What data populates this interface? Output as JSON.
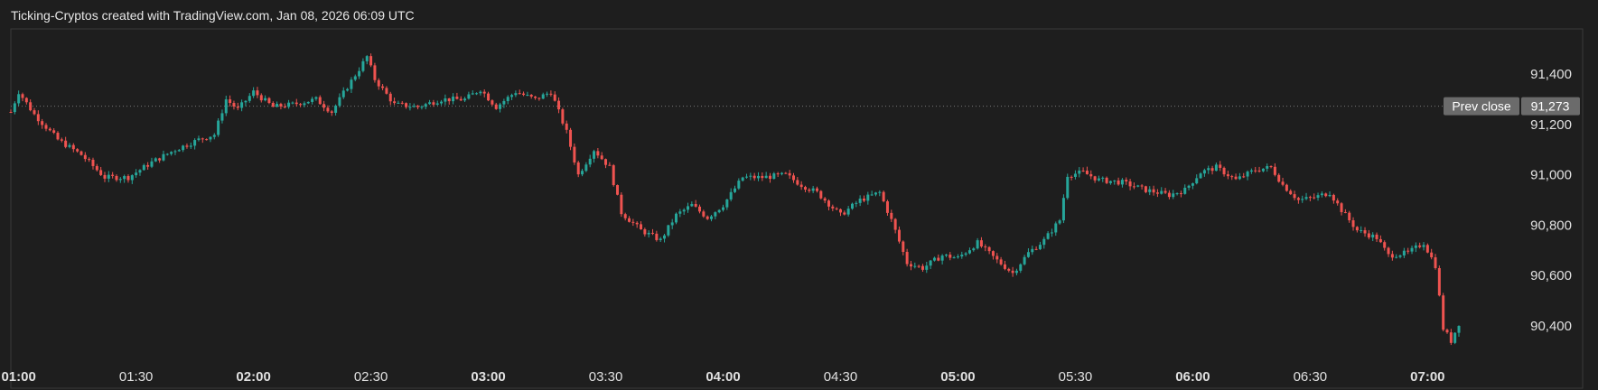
{
  "header": {
    "text": "Ticking-Cryptos created with TradingView.com, Jan 08, 2026 06:09 UTC"
  },
  "colors": {
    "background": "#1e1e1e",
    "up": "#26a69a",
    "down": "#ef5350",
    "grid_border": "#3a3a3a",
    "label_bg": "#6b6b6b"
  },
  "chart_data": {
    "type": "candlestick",
    "title": "",
    "xlabel": "",
    "ylabel": "",
    "ylim": [
      90260,
      91580
    ],
    "x_range": [
      "00:58",
      "07:23"
    ],
    "grid": false,
    "y_ticks": [
      {
        "value": 91400,
        "label": "91,400"
      },
      {
        "value": 91200,
        "label": "91,200"
      },
      {
        "value": 91000,
        "label": "91,000"
      },
      {
        "value": 90800,
        "label": "90,800"
      },
      {
        "value": 90600,
        "label": "90,600"
      },
      {
        "value": 90400,
        "label": "90,400"
      }
    ],
    "x_ticks": [
      {
        "time": "01:00",
        "label": "01:00",
        "major": true
      },
      {
        "time": "01:30",
        "label": "01:30",
        "major": false
      },
      {
        "time": "02:00",
        "label": "02:00",
        "major": true
      },
      {
        "time": "02:30",
        "label": "02:30",
        "major": false
      },
      {
        "time": "03:00",
        "label": "03:00",
        "major": true
      },
      {
        "time": "03:30",
        "label": "03:30",
        "major": false
      },
      {
        "time": "04:00",
        "label": "04:00",
        "major": true
      },
      {
        "time": "04:30",
        "label": "04:30",
        "major": false
      },
      {
        "time": "05:00",
        "label": "05:00",
        "major": true
      },
      {
        "time": "05:30",
        "label": "05:30",
        "major": false
      },
      {
        "time": "06:00",
        "label": "06:00",
        "major": true
      },
      {
        "time": "06:30",
        "label": "06:30",
        "major": false
      },
      {
        "time": "07:00",
        "label": "07:00",
        "major": true
      }
    ],
    "prev_close": {
      "label": "Prev close",
      "value": 91273,
      "value_label": "91,273"
    },
    "path": [
      [
        "00:58",
        91250
      ],
      [
        "01:00",
        91330
      ],
      [
        "01:04",
        91240
      ],
      [
        "01:10",
        91140
      ],
      [
        "01:16",
        91080
      ],
      [
        "01:22",
        90990
      ],
      [
        "01:28",
        90990
      ],
      [
        "01:34",
        91050
      ],
      [
        "01:40",
        91100
      ],
      [
        "01:46",
        91140
      ],
      [
        "01:50",
        91160
      ],
      [
        "01:53",
        91300
      ],
      [
        "01:56",
        91260
      ],
      [
        "02:00",
        91330
      ],
      [
        "02:05",
        91270
      ],
      [
        "02:10",
        91280
      ],
      [
        "02:16",
        91300
      ],
      [
        "02:20",
        91250
      ],
      [
        "02:24",
        91350
      ],
      [
        "02:27",
        91420
      ],
      [
        "02:29",
        91470
      ],
      [
        "02:31",
        91380
      ],
      [
        "02:36",
        91280
      ],
      [
        "02:42",
        91270
      ],
      [
        "02:48",
        91300
      ],
      [
        "02:54",
        91300
      ],
      [
        "02:58",
        91340
      ],
      [
        "03:02",
        91270
      ],
      [
        "03:07",
        91330
      ],
      [
        "03:12",
        91300
      ],
      [
        "03:16",
        91330
      ],
      [
        "03:20",
        91170
      ],
      [
        "03:23",
        91000
      ],
      [
        "03:27",
        91100
      ],
      [
        "03:31",
        91030
      ],
      [
        "03:34",
        90850
      ],
      [
        "03:39",
        90780
      ],
      [
        "03:44",
        90740
      ],
      [
        "03:48",
        90840
      ],
      [
        "03:52",
        90880
      ],
      [
        "03:56",
        90830
      ],
      [
        "04:00",
        90880
      ],
      [
        "04:05",
        90990
      ],
      [
        "04:10",
        90990
      ],
      [
        "04:16",
        91000
      ],
      [
        "04:20",
        90960
      ],
      [
        "04:24",
        90930
      ],
      [
        "04:30",
        90840
      ],
      [
        "04:35",
        90900
      ],
      [
        "04:40",
        90930
      ],
      [
        "04:43",
        90820
      ],
      [
        "04:47",
        90650
      ],
      [
        "04:51",
        90630
      ],
      [
        "04:56",
        90680
      ],
      [
        "05:00",
        90670
      ],
      [
        "05:05",
        90730
      ],
      [
        "05:10",
        90660
      ],
      [
        "05:14",
        90610
      ],
      [
        "05:18",
        90690
      ],
      [
        "05:22",
        90740
      ],
      [
        "05:26",
        90820
      ],
      [
        "05:28",
        91000
      ],
      [
        "05:32",
        91010
      ],
      [
        "05:36",
        90980
      ],
      [
        "05:42",
        90970
      ],
      [
        "05:48",
        90940
      ],
      [
        "05:54",
        90920
      ],
      [
        "05:58",
        90940
      ],
      [
        "06:02",
        91010
      ],
      [
        "06:06",
        91030
      ],
      [
        "06:11",
        90980
      ],
      [
        "06:16",
        91020
      ],
      [
        "06:20",
        91030
      ],
      [
        "06:23",
        90960
      ],
      [
        "06:27",
        90900
      ],
      [
        "06:31",
        90910
      ],
      [
        "06:35",
        90930
      ],
      [
        "06:38",
        90860
      ],
      [
        "06:42",
        90780
      ],
      [
        "06:47",
        90750
      ],
      [
        "06:50",
        90680
      ],
      [
        "06:55",
        90690
      ],
      [
        "06:59",
        90730
      ],
      [
        "07:02",
        90640
      ],
      [
        "07:04",
        90390
      ],
      [
        "07:06",
        90340
      ],
      [
        "07:08",
        90410
      ]
    ]
  }
}
